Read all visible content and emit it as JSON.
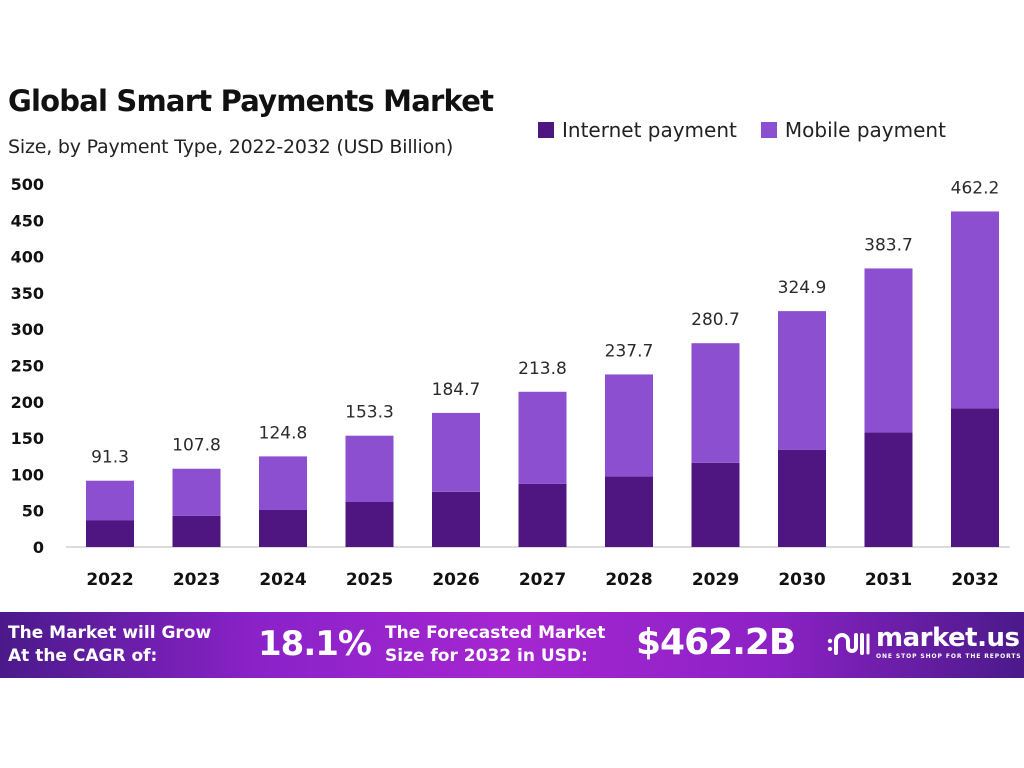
{
  "header": {
    "title": "Global Smart Payments Market",
    "subtitle": "Size, by Payment Type, 2022-2032 (USD Billion)"
  },
  "legend": {
    "items": [
      {
        "label": "Internet payment",
        "color": "#4f1580"
      },
      {
        "label": "Mobile payment",
        "color": "#8b4fcf"
      }
    ]
  },
  "chart_data": {
    "type": "bar",
    "stacked": true,
    "title": "Global Smart Payments Market",
    "subtitle": "Size, by Payment Type, 2022-2032 (USD Billion)",
    "xlabel": "",
    "ylabel": "",
    "ylim": [
      0,
      500
    ],
    "yticks": [
      0,
      50,
      100,
      150,
      200,
      250,
      300,
      350,
      400,
      450,
      500
    ],
    "grid": false,
    "legend_position": "top-right",
    "categories": [
      "2022",
      "2023",
      "2024",
      "2025",
      "2026",
      "2027",
      "2028",
      "2029",
      "2030",
      "2031",
      "2032"
    ],
    "series": [
      {
        "name": "Internet payment",
        "color": "#4f1580",
        "values": [
          37,
          43,
          51,
          62,
          76,
          87,
          97,
          116,
          134,
          158,
          191
        ]
      },
      {
        "name": "Mobile payment",
        "color": "#8b4fcf",
        "values": [
          54.3,
          64.8,
          73.8,
          91.3,
          108.7,
          126.8,
          140.7,
          164.7,
          190.9,
          225.7,
          271.2
        ]
      }
    ],
    "totals": [
      91.3,
      107.8,
      124.8,
      153.3,
      184.7,
      213.8,
      237.7,
      280.7,
      324.9,
      383.7,
      462.2
    ],
    "total_labels": [
      "91.3",
      "107.8",
      "124.8",
      "153.3",
      "184.7",
      "213.8",
      "237.7",
      "280.7",
      "324.9",
      "383.7",
      "462.2"
    ]
  },
  "banner": {
    "cagr_label_line1": "The Market will Grow",
    "cagr_label_line2": "At the CAGR of:",
    "cagr_value": "18.1%",
    "size_label_line1": "The Forecasted Market",
    "size_label_line2": "Size for 2032 in USD:",
    "size_value": "$462.2B",
    "brand_name": "market.us",
    "brand_tagline": "ONE STOP SHOP FOR THE REPORTS"
  }
}
